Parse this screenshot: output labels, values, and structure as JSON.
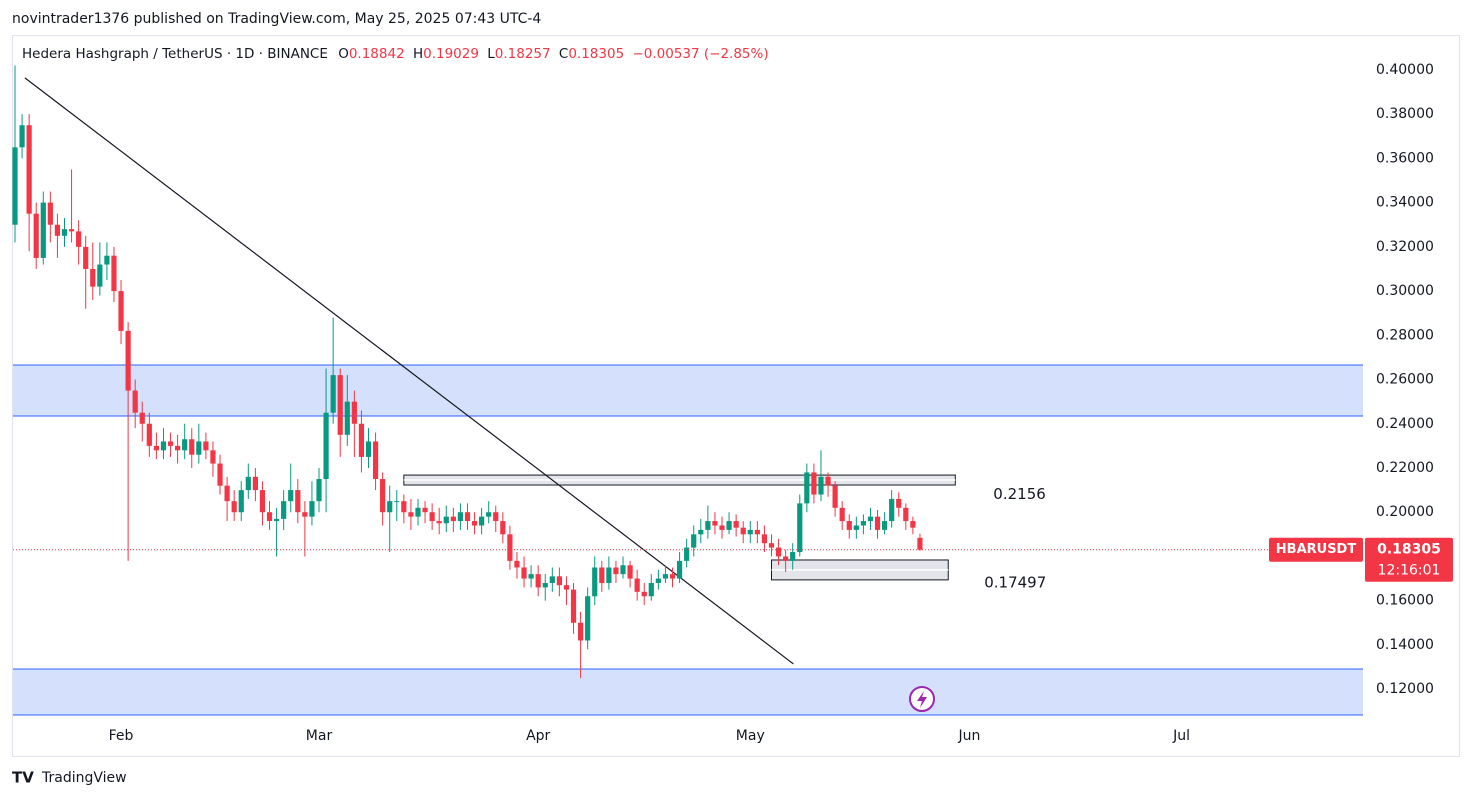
{
  "header": {
    "published": "novintrader1376 published on TradingView.com, May 25, 2025 07:43 UTC-4",
    "brand": "TradingView"
  },
  "chart_data": {
    "type": "candlestick",
    "symbol": "Hedera Hashgraph / TetherUS · 1D · BINANCE",
    "ohlc_letters": [
      "O",
      "H",
      "L",
      "C"
    ],
    "change": "−0.00537 (−2.85%)",
    "symbol_tag": "HBARUSDT",
    "countdown": "12:16:01",
    "up_color": "#089981",
    "down_color": "#f23645",
    "categories": [
      null,
      null,
      null,
      null,
      null,
      null,
      null,
      null,
      null,
      null,
      null,
      null,
      null,
      null,
      null,
      "Feb",
      null,
      null,
      null,
      null,
      null,
      null,
      null,
      null,
      null,
      null,
      null,
      null,
      null,
      null,
      null,
      null,
      null,
      null,
      null,
      null,
      null,
      null,
      null,
      null,
      null,
      null,
      null,
      "Mar",
      null,
      null,
      null,
      null,
      null,
      null,
      null,
      null,
      null,
      null,
      null,
      null,
      null,
      null,
      null,
      null,
      null,
      null,
      null,
      null,
      null,
      null,
      null,
      null,
      null,
      null,
      null,
      null,
      null,
      null,
      "Apr",
      null,
      null,
      null,
      null,
      null,
      null,
      null,
      null,
      null,
      null,
      null,
      null,
      null,
      null,
      null,
      null,
      null,
      null,
      null,
      null,
      null,
      null,
      null,
      null,
      null,
      null,
      null,
      null,
      null,
      "May",
      null,
      null,
      null,
      null,
      null,
      null,
      null,
      null,
      null,
      null,
      null,
      null,
      null,
      null,
      null,
      null,
      null,
      null,
      null,
      null,
      null,
      null,
      null,
      null,
      null,
      null,
      null,
      null,
      null,
      null,
      "Jun",
      null,
      null,
      null,
      null,
      null,
      null,
      null,
      null,
      null,
      null,
      null,
      null,
      null,
      null,
      null,
      null,
      null,
      null,
      null,
      null,
      null,
      null,
      null,
      null,
      null,
      null,
      null,
      null,
      null,
      "Jul"
    ],
    "open": [
      0.33,
      0.365,
      0.375,
      0.335,
      0.315,
      0.34,
      0.33,
      0.325,
      0.328,
      0.327,
      0.32,
      0.31,
      0.302,
      0.312,
      0.316,
      0.3,
      0.282,
      0.255,
      0.245,
      0.24,
      0.23,
      0.228,
      0.232,
      0.23,
      0.228,
      0.233,
      0.226,
      0.232,
      0.228,
      0.222,
      0.212,
      0.205,
      0.2,
      0.21,
      0.216,
      0.21,
      0.2,
      0.196,
      0.197,
      0.205,
      0.21,
      0.2,
      0.198,
      0.205,
      0.215,
      0.245,
      0.262,
      0.235,
      0.25,
      0.24,
      0.225,
      0.232,
      0.215,
      0.2,
      0.205,
      0.205,
      0.2,
      0.198,
      0.202,
      0.2,
      0.196,
      0.195,
      0.198,
      0.196,
      0.2,
      0.196,
      0.194,
      0.198,
      0.2,
      0.196,
      0.19,
      0.178,
      0.175,
      0.17,
      0.172,
      0.166,
      0.168,
      0.171,
      0.167,
      0.165,
      0.15,
      0.142,
      0.162,
      0.175,
      0.168,
      0.175,
      0.172,
      0.176,
      0.17,
      0.164,
      0.162,
      0.168,
      0.17,
      0.172,
      0.17,
      0.178,
      0.184,
      0.19,
      0.192,
      0.196,
      0.194,
      0.192,
      0.196,
      0.193,
      0.19,
      0.192,
      0.19,
      0.186,
      0.184,
      0.18,
      0.178,
      0.182,
      0.204,
      0.218,
      0.208,
      0.216,
      0.212,
      0.202,
      0.196,
      0.192,
      0.194,
      0.196,
      0.198,
      0.192,
      0.196,
      0.206,
      0.202,
      0.196,
      0.18842,
      null,
      null,
      null,
      null,
      null,
      null,
      null,
      null,
      null,
      null,
      null,
      null,
      null,
      null,
      null,
      null,
      null,
      null,
      null,
      null,
      null,
      null,
      null,
      null,
      null,
      null,
      null,
      null,
      null,
      null,
      null,
      null,
      null,
      null,
      null,
      null,
      null
    ],
    "high": [
      0.402,
      0.38,
      0.38,
      0.34,
      0.345,
      0.345,
      0.335,
      0.333,
      0.355,
      0.332,
      0.325,
      0.322,
      0.322,
      0.322,
      0.32,
      0.305,
      0.286,
      0.26,
      0.25,
      0.245,
      0.236,
      0.238,
      0.236,
      0.235,
      0.24,
      0.238,
      0.24,
      0.236,
      0.232,
      0.226,
      0.216,
      0.21,
      0.214,
      0.222,
      0.22,
      0.214,
      0.205,
      0.202,
      0.21,
      0.222,
      0.215,
      0.205,
      0.214,
      0.22,
      0.265,
      0.288,
      0.265,
      0.262,
      0.255,
      0.246,
      0.238,
      0.236,
      0.218,
      0.212,
      0.21,
      0.208,
      0.206,
      0.206,
      0.205,
      0.204,
      0.202,
      0.203,
      0.202,
      0.204,
      0.204,
      0.2,
      0.202,
      0.205,
      0.203,
      0.2,
      0.194,
      0.182,
      0.18,
      0.176,
      0.176,
      0.172,
      0.175,
      0.175,
      0.171,
      0.168,
      0.155,
      0.166,
      0.18,
      0.178,
      0.18,
      0.178,
      0.18,
      0.178,
      0.174,
      0.168,
      0.172,
      0.174,
      0.176,
      0.175,
      0.182,
      0.188,
      0.194,
      0.197,
      0.203,
      0.2,
      0.198,
      0.2,
      0.199,
      0.196,
      0.196,
      0.196,
      0.194,
      0.19,
      0.188,
      0.183,
      0.186,
      0.208,
      0.222,
      0.222,
      0.228,
      0.218,
      0.214,
      0.205,
      0.199,
      0.198,
      0.199,
      0.202,
      0.201,
      0.2,
      0.21,
      0.209,
      0.204,
      0.198,
      0.19029,
      null,
      null,
      null,
      null,
      null,
      null,
      null,
      null,
      null,
      null,
      null,
      null,
      null,
      null,
      null,
      null,
      null,
      null,
      null,
      null,
      null,
      null,
      null,
      null,
      null,
      null,
      null,
      null,
      null,
      null,
      null,
      null,
      null,
      null,
      null,
      null,
      null
    ],
    "low": [
      0.322,
      0.36,
      0.318,
      0.31,
      0.312,
      0.322,
      0.315,
      0.32,
      0.322,
      0.312,
      0.292,
      0.296,
      0.298,
      0.305,
      0.295,
      0.276,
      0.178,
      0.238,
      0.232,
      0.225,
      0.224,
      0.224,
      0.225,
      0.222,
      0.224,
      0.22,
      0.222,
      0.224,
      0.216,
      0.208,
      0.196,
      0.196,
      0.196,
      0.206,
      0.205,
      0.194,
      0.192,
      0.18,
      0.192,
      0.2,
      0.195,
      0.18,
      0.194,
      0.2,
      0.2,
      0.24,
      0.225,
      0.23,
      0.225,
      0.218,
      0.22,
      0.21,
      0.194,
      0.182,
      0.196,
      0.195,
      0.192,
      0.194,
      0.195,
      0.192,
      0.19,
      0.191,
      0.191,
      0.192,
      0.192,
      0.19,
      0.19,
      0.195,
      0.191,
      0.186,
      0.174,
      0.17,
      0.166,
      0.166,
      0.162,
      0.16,
      0.164,
      0.162,
      0.158,
      0.145,
      0.125,
      0.138,
      0.158,
      0.164,
      0.165,
      0.168,
      0.17,
      0.166,
      0.16,
      0.158,
      0.16,
      0.165,
      0.168,
      0.166,
      0.168,
      0.175,
      0.18,
      0.186,
      0.188,
      0.19,
      0.188,
      0.19,
      0.189,
      0.186,
      0.186,
      0.186,
      0.182,
      0.18,
      0.176,
      0.173,
      0.174,
      0.18,
      0.2,
      0.204,
      0.205,
      0.207,
      0.198,
      0.192,
      0.188,
      0.188,
      0.19,
      0.192,
      0.188,
      0.19,
      0.193,
      0.198,
      0.192,
      0.19,
      0.18257,
      null,
      null,
      null,
      null,
      null,
      null,
      null,
      null,
      null,
      null,
      null,
      null,
      null,
      null,
      null,
      null,
      null,
      null,
      null,
      null,
      null,
      null,
      null,
      null,
      null,
      null,
      null,
      null,
      null,
      null,
      null,
      null,
      null,
      null,
      null,
      null,
      null
    ],
    "close": [
      0.365,
      0.375,
      0.335,
      0.315,
      0.34,
      0.33,
      0.325,
      0.328,
      0.327,
      0.32,
      0.31,
      0.302,
      0.312,
      0.316,
      0.3,
      0.282,
      0.255,
      0.245,
      0.24,
      0.23,
      0.228,
      0.232,
      0.23,
      0.228,
      0.233,
      0.226,
      0.232,
      0.228,
      0.222,
      0.212,
      0.205,
      0.2,
      0.21,
      0.216,
      0.21,
      0.2,
      0.196,
      0.197,
      0.205,
      0.21,
      0.2,
      0.198,
      0.205,
      0.215,
      0.245,
      0.262,
      0.235,
      0.25,
      0.24,
      0.225,
      0.232,
      0.215,
      0.2,
      0.205,
      0.205,
      0.2,
      0.198,
      0.202,
      0.2,
      0.196,
      0.195,
      0.198,
      0.196,
      0.2,
      0.196,
      0.194,
      0.198,
      0.2,
      0.196,
      0.19,
      0.178,
      0.175,
      0.17,
      0.172,
      0.166,
      0.168,
      0.171,
      0.167,
      0.165,
      0.15,
      0.142,
      0.162,
      0.175,
      0.168,
      0.175,
      0.172,
      0.176,
      0.17,
      0.164,
      0.162,
      0.168,
      0.17,
      0.172,
      0.17,
      0.178,
      0.184,
      0.19,
      0.192,
      0.196,
      0.194,
      0.192,
      0.196,
      0.193,
      0.19,
      0.192,
      0.19,
      0.186,
      0.184,
      0.18,
      0.178,
      0.182,
      0.204,
      0.218,
      0.208,
      0.216,
      0.212,
      0.202,
      0.196,
      0.192,
      0.194,
      0.196,
      0.198,
      0.192,
      0.196,
      0.206,
      0.202,
      0.196,
      0.193,
      0.18305,
      null,
      null,
      null,
      null,
      null,
      null,
      null,
      null,
      null,
      null,
      null,
      null,
      null,
      null,
      null,
      null,
      null,
      null,
      null,
      null,
      null,
      null,
      null,
      null,
      null,
      null,
      null,
      null,
      null,
      null,
      null,
      null,
      null,
      null,
      null,
      null,
      null
    ],
    "ylim": [
      0.1083,
      0.4158
    ],
    "yticks": [
      {
        "value": 0.12,
        "label": "0.12000"
      },
      {
        "value": 0.14,
        "label": "0.14000"
      },
      {
        "value": 0.16,
        "label": "0.16000"
      },
      {
        "value": 0.18,
        "label": "0.18000"
      },
      {
        "value": 0.2,
        "label": "0.20000"
      },
      {
        "value": 0.22,
        "label": "0.22000"
      },
      {
        "value": 0.24,
        "label": "0.24000"
      },
      {
        "value": 0.26,
        "label": "0.26000"
      },
      {
        "value": 0.28,
        "label": "0.28000"
      },
      {
        "value": 0.3,
        "label": "0.30000"
      },
      {
        "value": 0.32,
        "label": "0.32000"
      },
      {
        "value": 0.34,
        "label": "0.34000"
      },
      {
        "value": 0.36,
        "label": "0.36000"
      },
      {
        "value": 0.38,
        "label": "0.38000"
      },
      {
        "value": 0.4,
        "label": "0.40000"
      }
    ],
    "zones": [
      {
        "top": 0.2666,
        "bottom": 0.2435,
        "color": "#d4e0fc"
      },
      {
        "top": 0.1291,
        "bottom": 0.1083,
        "color": "#d4e0fc"
      }
    ],
    "levels": [
      {
        "label": "0.2156",
        "top": 0.2168,
        "bottom": 0.2123,
        "start": 55,
        "end": 133
      },
      {
        "label": "0.17497",
        "top": 0.1784,
        "bottom": 0.1694,
        "start": 107,
        "end": 132
      }
    ],
    "trendline": {
      "start": [
        1.4,
        0.3964
      ],
      "end": [
        110.1,
        0.1314
      ]
    }
  }
}
